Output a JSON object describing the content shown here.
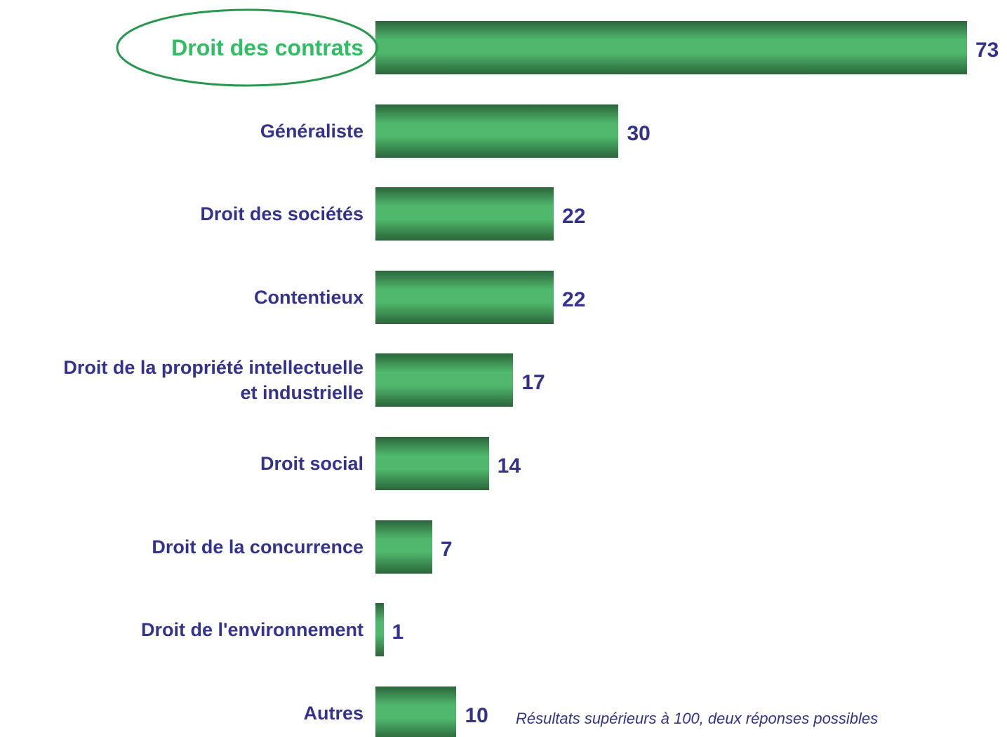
{
  "chart_data": {
    "type": "bar",
    "orientation": "horizontal",
    "categories": [
      "Droit des contrats",
      "Généraliste",
      "Droit des sociétés",
      "Contentieux",
      "Droit de la propriété intellectuelle\net industrielle",
      "Droit social",
      "Droit de la concurrence",
      "Droit de l'environnement",
      "Autres"
    ],
    "values": [
      73,
      30,
      22,
      22,
      17,
      14,
      7,
      1,
      10
    ],
    "color": "#4fb86c",
    "highlight": 0,
    "highlight_color": "#2fbf62",
    "label_color": "#33338f",
    "note": "Résultats supérieurs à 100, deux réponses possibles"
  }
}
